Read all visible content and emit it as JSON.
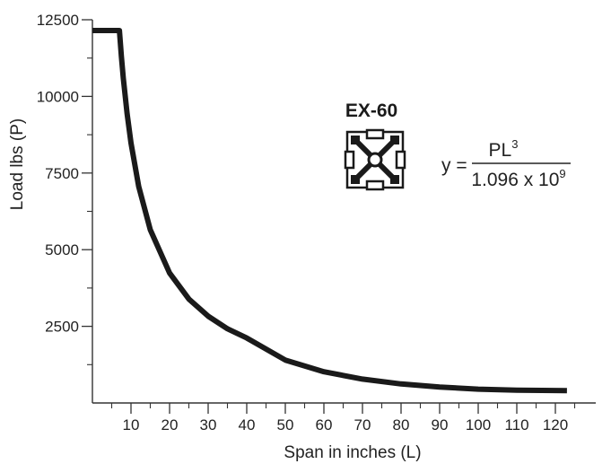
{
  "chart_data": {
    "type": "line",
    "title": "",
    "xlabel": "Span in inches (L)",
    "ylabel": "Load lbs (P)",
    "xlim": [
      0,
      125
    ],
    "ylim": [
      0,
      13000
    ],
    "x_ticks": [
      10,
      20,
      30,
      40,
      50,
      60,
      70,
      80,
      90,
      100,
      110,
      120
    ],
    "x_minor_ticks": [
      5,
      15,
      25,
      35,
      45,
      55,
      65,
      75,
      85,
      95,
      105,
      115,
      125
    ],
    "y_ticks": [
      2500,
      5000,
      7500,
      10000,
      12500
    ],
    "y_minor_ticks": [
      1250,
      3750,
      6250,
      8750,
      11250
    ],
    "grid": false,
    "series": [
      {
        "color": "#1a1a1a",
        "x": [
          0,
          7,
          7.5,
          8,
          9,
          10,
          12,
          15,
          20,
          25,
          30,
          35,
          40,
          50,
          60,
          70,
          80,
          90,
          100,
          110,
          123
        ],
        "y": [
          12150,
          12150,
          11300,
          10600,
          9430,
          8480,
          7060,
          5650,
          4240,
          3390,
          2830,
          2420,
          2120,
          1400,
          1020,
          780,
          620,
          520,
          450,
          420,
          400
        ]
      }
    ]
  },
  "product": {
    "name": "EX-60",
    "icon": "extrusion-profile-icon"
  },
  "formula": {
    "lhs": "y =",
    "numerator_base": "PL",
    "numerator_exp": "3",
    "denominator_base": "1.096 x 10",
    "denominator_exp": "9"
  }
}
